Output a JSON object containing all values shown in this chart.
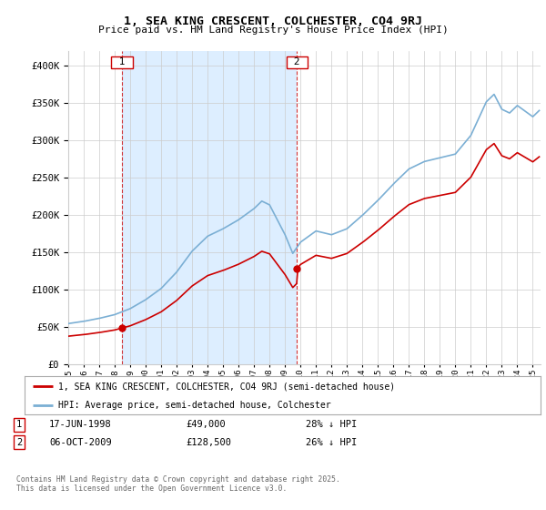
{
  "title": "1, SEA KING CRESCENT, COLCHESTER, CO4 9RJ",
  "subtitle": "Price paid vs. HM Land Registry's House Price Index (HPI)",
  "sale1_date": "17-JUN-1998",
  "sale1_price": 49000,
  "sale1_hpi_text": "28% ↓ HPI",
  "sale1_x": 1998.46,
  "sale2_date": "06-OCT-2009",
  "sale2_price": 128500,
  "sale2_hpi_text": "26% ↓ HPI",
  "sale2_x": 2009.77,
  "legend_property": "1, SEA KING CRESCENT, COLCHESTER, CO4 9RJ (semi-detached house)",
  "legend_hpi": "HPI: Average price, semi-detached house, Colchester",
  "copyright": "Contains HM Land Registry data © Crown copyright and database right 2025.\nThis data is licensed under the Open Government Licence v3.0.",
  "red_color": "#cc0000",
  "blue_color": "#7bafd4",
  "shade_color": "#ddeeff",
  "ylim": [
    0,
    420000
  ],
  "xlim_start": 1995.0,
  "xlim_end": 2025.5,
  "background_color": "#ffffff",
  "grid_color": "#cccccc"
}
